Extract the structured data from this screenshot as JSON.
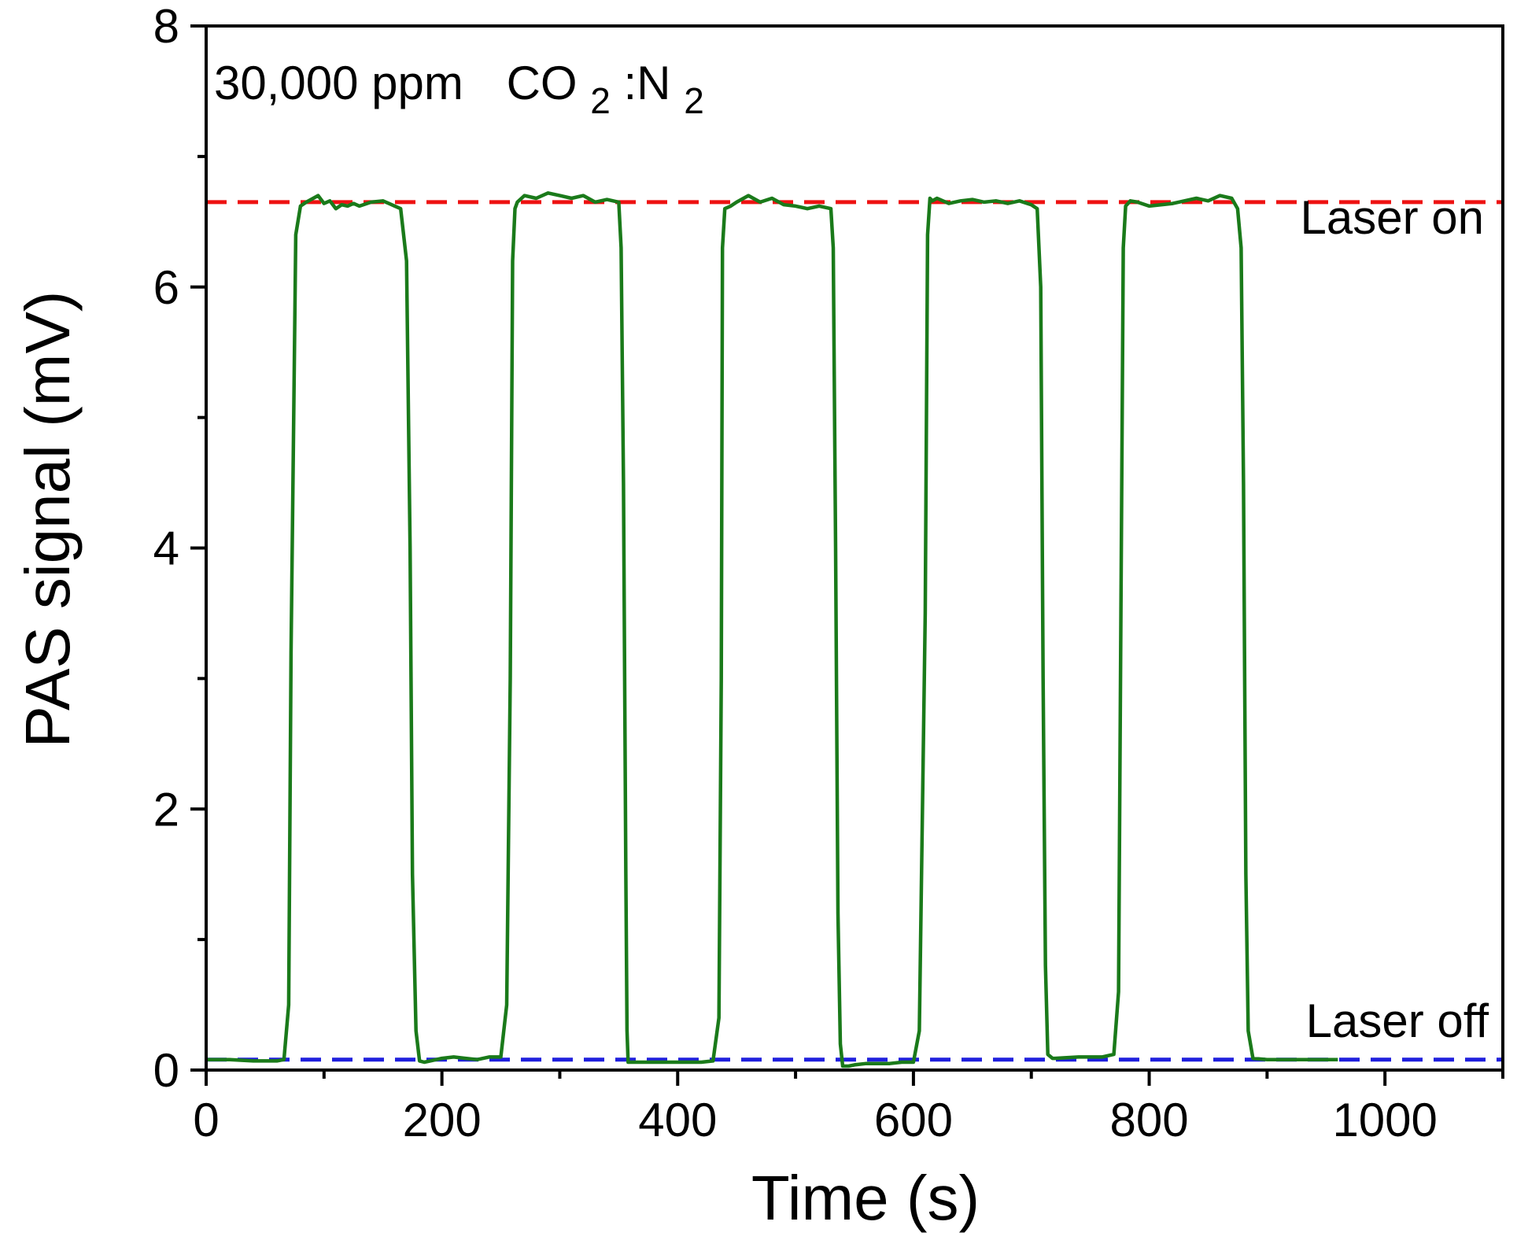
{
  "chart_data": {
    "type": "line",
    "title": "",
    "xlabel": "Time (s)",
    "ylabel": "PAS signal (mV)",
    "xlim": [
      0,
      1100
    ],
    "ylim": [
      0,
      8
    ],
    "x_ticks": [
      0,
      200,
      400,
      600,
      800,
      1000
    ],
    "x_tick_labels": [
      "0",
      "200",
      "400",
      "600",
      "800",
      "1000"
    ],
    "x_minor_ticks": [
      100,
      300,
      500,
      700,
      900,
      1100
    ],
    "y_ticks": [
      0,
      2,
      4,
      6,
      8
    ],
    "y_tick_labels": [
      "0",
      "2",
      "4",
      "6",
      "8"
    ],
    "y_minor_ticks": [
      1,
      3,
      5,
      7
    ],
    "grid": false,
    "legend": "none",
    "series": [
      {
        "name": "PAS signal",
        "color": "#1a7a1a",
        "x": [
          0,
          20,
          40,
          60,
          66,
          70,
          72,
          76,
          80,
          85,
          95,
          100,
          105,
          110,
          115,
          120,
          125,
          130,
          140,
          150,
          155,
          160,
          165,
          170,
          173,
          175,
          178,
          181,
          185,
          190,
          200,
          210,
          220,
          230,
          240,
          250,
          255,
          258,
          260,
          262,
          264,
          270,
          280,
          290,
          300,
          310,
          320,
          330,
          340,
          350,
          352,
          354,
          356,
          357,
          358,
          362,
          370,
          380,
          390,
          400,
          410,
          420,
          430,
          435,
          437,
          438,
          440,
          445,
          450,
          460,
          470,
          480,
          490,
          500,
          510,
          520,
          530,
          532,
          534,
          536,
          538,
          540,
          545,
          550,
          560,
          570,
          580,
          590,
          600,
          605,
          610,
          612,
          614,
          616,
          620,
          630,
          640,
          650,
          660,
          670,
          680,
          690,
          700,
          705,
          708,
          710,
          712,
          714,
          718,
          720,
          740,
          760,
          770,
          774,
          776,
          778,
          780,
          784,
          790,
          800,
          820,
          840,
          850,
          860,
          870,
          875,
          878,
          880,
          882,
          884,
          888,
          900,
          920,
          940,
          950,
          960
        ],
        "y": [
          0.08,
          0.08,
          0.07,
          0.07,
          0.08,
          0.5,
          3.2,
          6.4,
          6.62,
          6.65,
          6.7,
          6.64,
          6.66,
          6.6,
          6.63,
          6.62,
          6.64,
          6.62,
          6.65,
          6.66,
          6.64,
          6.62,
          6.6,
          6.2,
          4.0,
          1.5,
          0.3,
          0.07,
          0.06,
          0.07,
          0.09,
          0.1,
          0.09,
          0.08,
          0.1,
          0.1,
          0.5,
          3.0,
          6.2,
          6.6,
          6.65,
          6.7,
          6.68,
          6.72,
          6.7,
          6.68,
          6.7,
          6.65,
          6.67,
          6.65,
          6.3,
          4.5,
          1.5,
          0.3,
          0.06,
          0.06,
          0.06,
          0.06,
          0.06,
          0.06,
          0.06,
          0.06,
          0.07,
          0.4,
          3.0,
          6.3,
          6.6,
          6.62,
          6.65,
          6.7,
          6.65,
          6.68,
          6.63,
          6.62,
          6.6,
          6.62,
          6.6,
          6.3,
          4.0,
          1.2,
          0.2,
          0.03,
          0.03,
          0.04,
          0.05,
          0.05,
          0.05,
          0.06,
          0.06,
          0.3,
          3.5,
          6.4,
          6.68,
          6.66,
          6.68,
          6.64,
          6.66,
          6.67,
          6.65,
          6.66,
          6.64,
          6.66,
          6.63,
          6.6,
          6.0,
          3.0,
          0.8,
          0.12,
          0.09,
          0.09,
          0.1,
          0.1,
          0.12,
          0.6,
          3.5,
          6.3,
          6.62,
          6.66,
          6.65,
          6.62,
          6.64,
          6.68,
          6.66,
          6.7,
          6.68,
          6.6,
          6.3,
          4.5,
          1.5,
          0.3,
          0.09,
          0.08,
          0.08,
          0.08,
          0.08,
          0.08
        ]
      },
      {
        "name": "Laser on",
        "color": "#ee1111",
        "style": "dashed",
        "x": [
          0,
          1100
        ],
        "y": [
          6.65,
          6.65
        ]
      },
      {
        "name": "Laser off",
        "color": "#1f1fdd",
        "style": "dashed",
        "x": [
          0,
          1100
        ],
        "y": [
          0.08,
          0.08
        ]
      }
    ],
    "annotations": {
      "concentration": "30,000 ppm",
      "gas_main_1": "CO",
      "gas_sub_1": "2",
      "gas_sep": ":N",
      "gas_sub_2": "2",
      "laser_on": "Laser on",
      "laser_off": "Laser off"
    }
  }
}
